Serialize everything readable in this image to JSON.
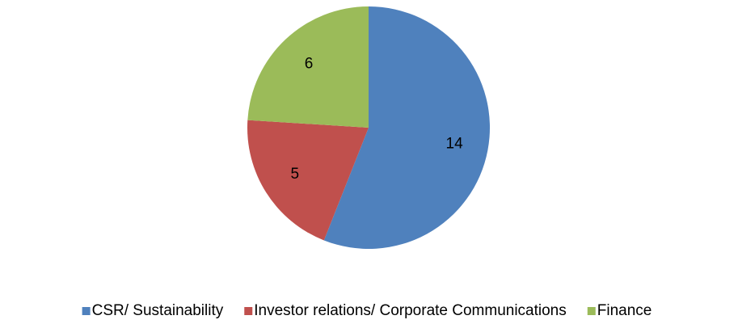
{
  "chart_data": {
    "type": "pie",
    "categories": [
      "CSR/ Sustainability",
      "Investor relations/ Corporate Communications",
      "Finance"
    ],
    "values": [
      14,
      5,
      6
    ],
    "colors": [
      "#4f81bd",
      "#c0504d",
      "#9bbb59"
    ],
    "legend": "bottom"
  }
}
